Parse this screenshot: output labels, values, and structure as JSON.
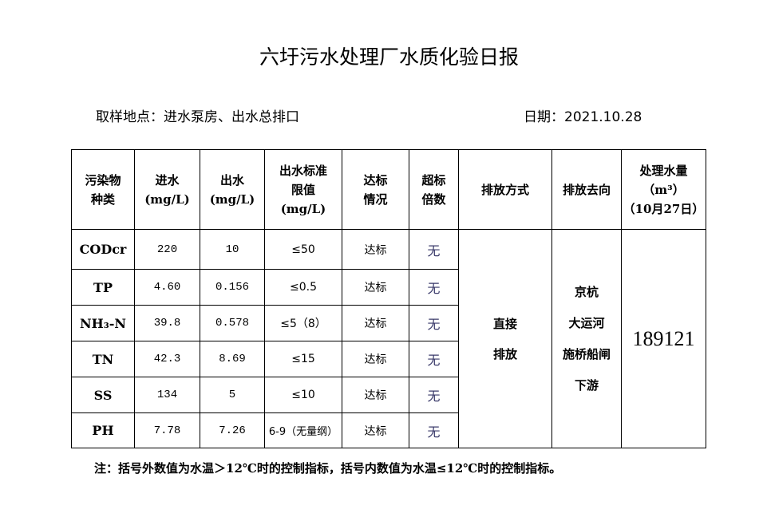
{
  "title": "六圩污水处理厂水质化验日报",
  "location": "取样地点：进水泵房、出水总排口",
  "date": "日期：2021.10.28",
  "headers": {
    "pollutant": [
      "污染物",
      "种类"
    ],
    "influent": [
      "进水",
      "(mg/L)"
    ],
    "effluent": [
      "出水",
      "(mg/L)"
    ],
    "limit": [
      "出水标准",
      "限值",
      "(mg/L)"
    ],
    "status": [
      "达标",
      "情况"
    ],
    "exceed": [
      "超标",
      "倍数"
    ],
    "method": "排放方式",
    "destination": "排放去向",
    "volume": [
      "处理水量",
      "（m³）",
      "（10月27日）"
    ]
  },
  "rows": [
    {
      "name": "CODcr",
      "in": "220",
      "out": "10",
      "limit": "≤50",
      "status": "达标",
      "exceed": "无"
    },
    {
      "name": "TP",
      "in": "4.60",
      "out": "0.156",
      "limit": "≤0.5",
      "status": "达标",
      "exceed": "无"
    },
    {
      "name": "NH₃-N",
      "in": "39.8",
      "out": "0.578",
      "limit": "≤5（8）",
      "status": "达标",
      "exceed": "无"
    },
    {
      "name": "TN",
      "in": "42.3",
      "out": "8.69",
      "limit": "≤15",
      "status": "达标",
      "exceed": "无"
    },
    {
      "name": "SS",
      "in": "134",
      "out": "5",
      "limit": "≤10",
      "status": "达标",
      "exceed": "无"
    },
    {
      "name": "PH",
      "in": "7.78",
      "out": "7.26",
      "limit": "6-9（无量纲）",
      "status": "达标",
      "exceed": "无"
    }
  ],
  "method": [
    "直接",
    "排放"
  ],
  "destination": [
    "京杭",
    "大运河",
    "施桥船闸",
    "下游"
  ],
  "volume": "189121",
  "note": "注：括号外数值为水温＞12℃时的控制指标，括号内数值为水温≤12℃时的控制指标。"
}
